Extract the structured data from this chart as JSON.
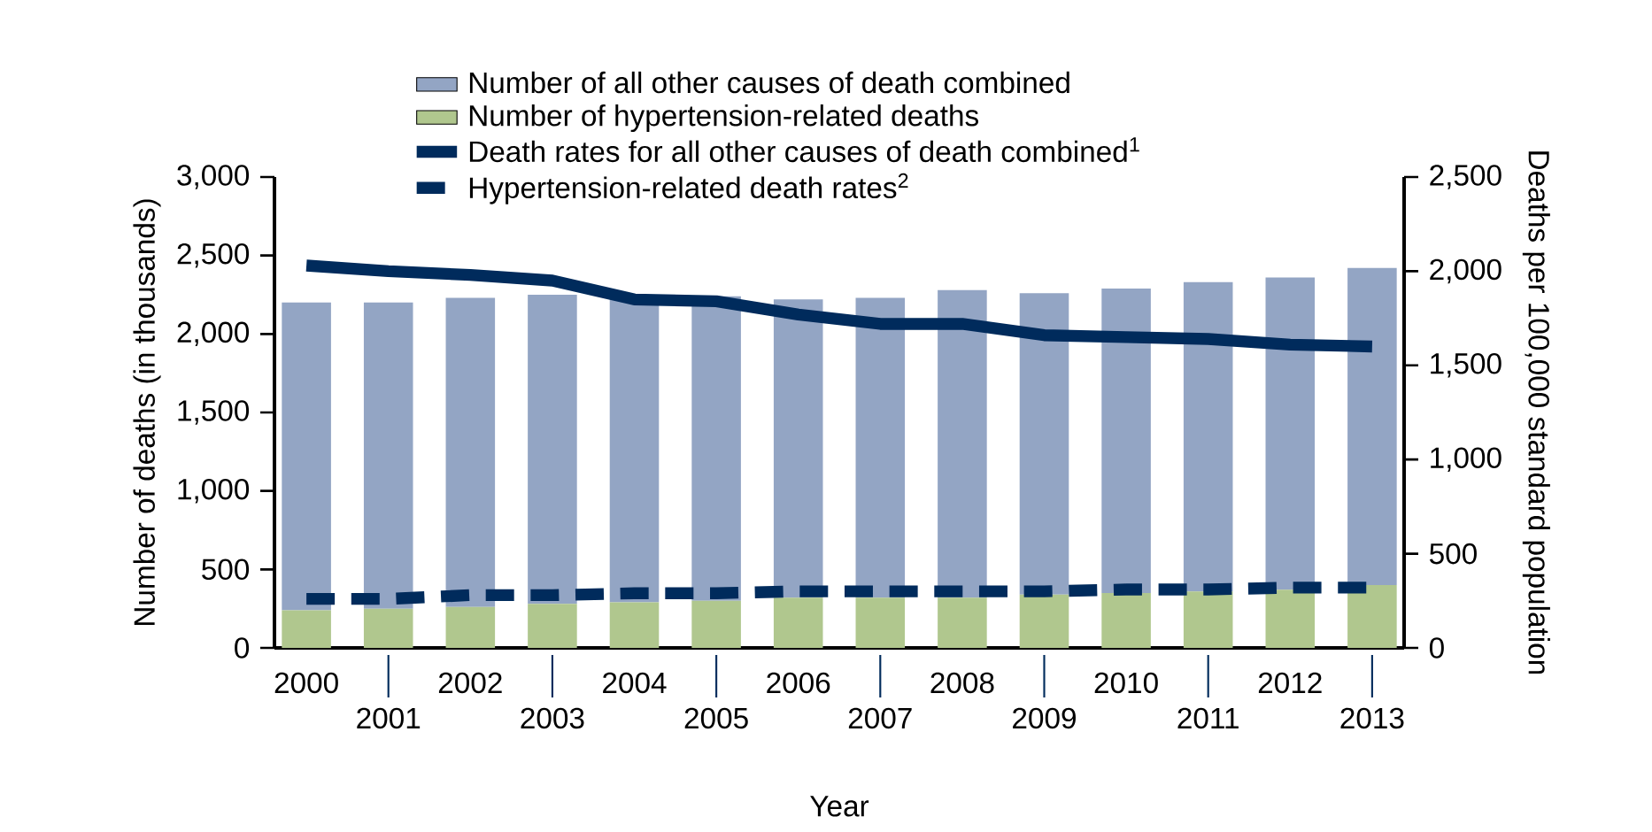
{
  "chart_data": {
    "type": "bar",
    "stacked": true,
    "xlabel": "Year",
    "ylabel": "Number of deaths (in thousands)",
    "y2label": "Deaths per 100,000 standard population",
    "categories": [
      "2000",
      "2001",
      "2002",
      "2003",
      "2004",
      "2005",
      "2006",
      "2007",
      "2008",
      "2009",
      "2010",
      "2011",
      "2012",
      "2013"
    ],
    "series": [
      {
        "name": "Number of hypertension-related deaths",
        "type": "bar",
        "color": "#b0c78e",
        "values": [
          240,
          250,
          260,
          280,
          290,
          300,
          320,
          320,
          320,
          340,
          350,
          360,
          370,
          400
        ]
      },
      {
        "name": "Number of all other causes of death combined",
        "type": "bar",
        "color": "#93a5c4",
        "values": [
          1960,
          1950,
          1970,
          1970,
          1950,
          1940,
          1900,
          1910,
          1960,
          1920,
          1940,
          1970,
          1990,
          2020
        ]
      },
      {
        "name": "Death rates for all other causes of death combined$^{1}$",
        "type": "line",
        "axis": "y2",
        "line_style": "solid",
        "color": "#002b5c",
        "values": [
          2030,
          2000,
          1980,
          1950,
          1850,
          1840,
          1770,
          1720,
          1720,
          1660,
          1650,
          1640,
          1610,
          1600
        ]
      },
      {
        "name": "Hypertension-related death rates$^{2}$",
        "type": "line",
        "axis": "y2",
        "line_style": "dashed",
        "color": "#002b5c",
        "values": [
          260,
          260,
          280,
          280,
          290,
          290,
          300,
          300,
          300,
          300,
          310,
          310,
          320,
          320
        ]
      }
    ],
    "ylim": [
      0,
      3000
    ],
    "yticks": [
      0,
      500,
      {
        "value": 1000,
        "label": "1,000"
      },
      {
        "value": 1500,
        "label": "1,500"
      },
      {
        "value": 2000,
        "label": "2,000"
      },
      {
        "value": 2500,
        "label": "2,500"
      },
      {
        "value": 3000,
        "label": "3,000"
      }
    ],
    "y2lim": [
      0,
      2500
    ],
    "y2ticks": [
      0,
      500,
      {
        "value": 1000,
        "label": "1,000"
      },
      {
        "value": 1500,
        "label": "1,500"
      },
      {
        "value": 2000,
        "label": "2,000"
      },
      {
        "value": 2500,
        "label": "2,500"
      }
    ],
    "grid": false,
    "legend": "top",
    "marker": "none"
  }
}
